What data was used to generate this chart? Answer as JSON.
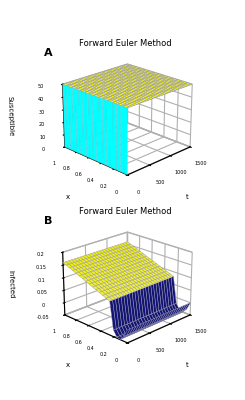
{
  "title_A": "Forward Euler Method",
  "title_B": "Forward Euler Method",
  "label_A": "A",
  "label_B": "B",
  "ylabel_A": "Susceptible",
  "ylabel_B": "Infected",
  "xlabel": "x",
  "tlabel": "t",
  "t_max": 1500,
  "x_max": 1.0,
  "S_value": 50.0,
  "S_min": 0.0,
  "S_max": 50.0,
  "I_max": 0.2,
  "I_min": -0.05,
  "elev": 22,
  "azim_A": -135,
  "azim_B": -135,
  "background": "#ffffff",
  "pane_color": [
    1.0,
    1.0,
    1.0,
    1.0
  ],
  "Nt": 30,
  "Nx": 15
}
